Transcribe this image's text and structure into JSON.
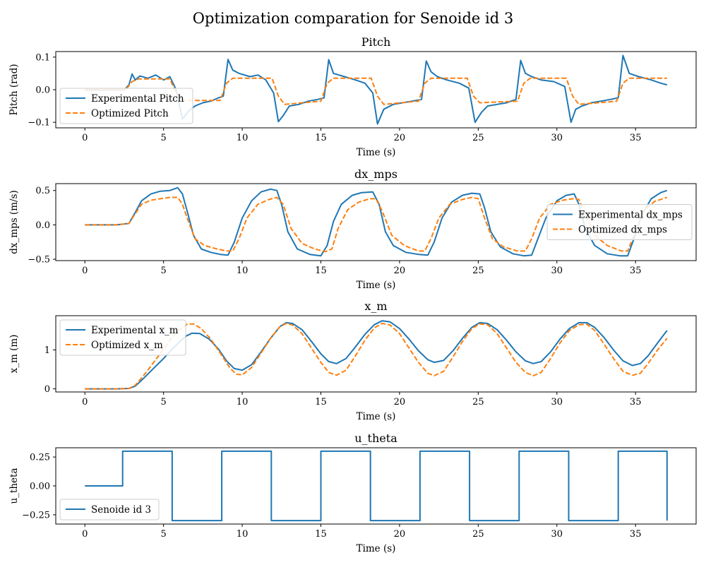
{
  "figure": {
    "suptitle": "Optimization comparation for Senoide id 3"
  },
  "colors": {
    "blue": "#1f77b4",
    "orange": "#ff7f0e"
  },
  "chart_data": [
    {
      "type": "line",
      "title": "Pitch",
      "xlabel": "Time (s)",
      "ylabel": "Pitch (rad)",
      "xlim": [
        -1.85,
        38.85
      ],
      "ylim": [
        -0.117,
        0.117
      ],
      "xticks": [
        0,
        5,
        10,
        15,
        20,
        25,
        30,
        35
      ],
      "yticks": [
        -0.1,
        0.0,
        0.1
      ],
      "ytick_labels": [
        "−0.1",
        "0.0",
        "0.1"
      ],
      "legend": "lower-left",
      "series": [
        {
          "name": "Experimental Pitch",
          "style": "solid",
          "color": "#1f77b4",
          "x": [
            0,
            2.5,
            2.8,
            3.0,
            3.2,
            3.5,
            4.0,
            4.5,
            5.0,
            5.4,
            5.8,
            6.2,
            6.6,
            7.0,
            7.5,
            8.0,
            8.5,
            8.8,
            9.1,
            9.4,
            9.8,
            10.5,
            11.0,
            11.5,
            12.0,
            12.3,
            12.6,
            13.0,
            13.6,
            14.2,
            14.8,
            15.2,
            15.5,
            15.8,
            16.5,
            17.2,
            17.8,
            18.3,
            18.6,
            19.0,
            19.6,
            20.2,
            20.8,
            21.4,
            21.7,
            22.0,
            22.4,
            23.0,
            23.8,
            24.4,
            24.8,
            25.2,
            25.6,
            26.2,
            26.8,
            27.4,
            27.7,
            28.0,
            28.4,
            29.0,
            29.8,
            30.5,
            30.9,
            31.2,
            31.6,
            32.2,
            32.8,
            33.4,
            33.9,
            34.2,
            34.6,
            35.2,
            36.0,
            36.6,
            37.0
          ],
          "y": [
            -0.001,
            -0.001,
            0.015,
            0.048,
            0.03,
            0.042,
            0.035,
            0.045,
            0.03,
            0.04,
            0.0,
            -0.09,
            -0.065,
            -0.05,
            -0.04,
            -0.035,
            -0.025,
            -0.02,
            0.093,
            0.06,
            0.05,
            0.04,
            0.045,
            0.03,
            -0.01,
            -0.098,
            -0.08,
            -0.05,
            -0.045,
            -0.035,
            -0.03,
            -0.025,
            0.092,
            0.05,
            0.04,
            0.03,
            0.02,
            -0.01,
            -0.105,
            -0.06,
            -0.045,
            -0.04,
            -0.035,
            -0.03,
            0.088,
            0.055,
            0.04,
            0.03,
            0.02,
            0.005,
            -0.1,
            -0.07,
            -0.05,
            -0.045,
            -0.04,
            -0.03,
            0.09,
            0.05,
            0.04,
            0.03,
            0.025,
            0.01,
            -0.1,
            -0.06,
            -0.05,
            -0.04,
            -0.035,
            -0.03,
            -0.025,
            0.105,
            0.05,
            0.04,
            0.03,
            0.02,
            0.015
          ]
        },
        {
          "name": "Optimized Pitch",
          "style": "dashed",
          "color": "#ff7f0e",
          "x": [
            0,
            2.6,
            3.0,
            3.4,
            5.4,
            5.8,
            6.2,
            8.6,
            9.0,
            9.4,
            11.9,
            12.3,
            12.7,
            15.0,
            15.4,
            15.8,
            18.2,
            18.6,
            19.0,
            21.2,
            21.6,
            22.0,
            24.3,
            24.7,
            25.1,
            27.5,
            27.9,
            28.3,
            30.6,
            31.0,
            31.4,
            33.8,
            34.2,
            34.6,
            37.0
          ],
          "y": [
            0.0,
            0.0,
            0.025,
            0.033,
            0.033,
            -0.01,
            -0.033,
            -0.033,
            0.02,
            0.035,
            0.035,
            -0.02,
            -0.045,
            -0.035,
            0.02,
            0.035,
            0.035,
            -0.02,
            -0.045,
            -0.035,
            0.02,
            0.035,
            0.035,
            -0.02,
            -0.04,
            -0.035,
            0.02,
            0.035,
            0.035,
            -0.02,
            -0.045,
            -0.035,
            0.02,
            0.035,
            0.035
          ]
        }
      ]
    },
    {
      "type": "line",
      "title": "dx_mps",
      "xlabel": "Time (s)",
      "ylabel": "dx_mps (m/s)",
      "xlim": [
        -1.85,
        38.85
      ],
      "ylim": [
        -0.52,
        0.6
      ],
      "xticks": [
        0,
        5,
        10,
        15,
        20,
        25,
        30,
        35
      ],
      "yticks": [
        -0.5,
        0.0,
        0.5
      ],
      "ytick_labels": [
        "−0.5",
        "0.0",
        "0.5"
      ],
      "legend": "center-right",
      "series": [
        {
          "name": "Experimental dx_mps",
          "style": "solid",
          "color": "#1f77b4",
          "x": [
            0,
            1.0,
            2.0,
            2.8,
            3.2,
            3.6,
            4.2,
            4.8,
            5.4,
            5.9,
            6.2,
            6.5,
            6.9,
            7.4,
            8.0,
            8.6,
            9.1,
            9.5,
            10.0,
            10.6,
            11.2,
            11.8,
            12.2,
            12.5,
            12.9,
            13.5,
            14.3,
            15.0,
            15.4,
            15.8,
            16.3,
            17.0,
            17.6,
            18.3,
            18.7,
            19.1,
            19.6,
            20.4,
            21.2,
            21.8,
            22.2,
            22.7,
            23.3,
            24.0,
            24.6,
            25.1,
            25.4,
            25.8,
            26.4,
            27.2,
            27.9,
            28.4,
            28.8,
            29.3,
            30.0,
            30.6,
            31.1,
            31.4,
            31.8,
            32.4,
            33.2,
            34.0,
            34.5,
            34.9,
            35.4,
            36.0,
            36.6,
            37.0
          ],
          "y": [
            0.0,
            0.0,
            0.0,
            0.02,
            0.18,
            0.35,
            0.45,
            0.49,
            0.5,
            0.54,
            0.45,
            0.2,
            -0.15,
            -0.35,
            -0.4,
            -0.43,
            -0.44,
            -0.25,
            0.1,
            0.35,
            0.48,
            0.52,
            0.5,
            0.3,
            -0.1,
            -0.35,
            -0.43,
            -0.45,
            -0.3,
            0.05,
            0.3,
            0.43,
            0.47,
            0.48,
            0.3,
            -0.1,
            -0.3,
            -0.4,
            -0.43,
            -0.44,
            -0.25,
            0.1,
            0.33,
            0.43,
            0.46,
            0.45,
            0.25,
            -0.1,
            -0.32,
            -0.42,
            -0.45,
            -0.44,
            -0.2,
            0.1,
            0.35,
            0.43,
            0.45,
            0.3,
            -0.05,
            -0.3,
            -0.42,
            -0.45,
            -0.45,
            -0.2,
            0.15,
            0.38,
            0.47,
            0.5
          ]
        },
        {
          "name": "Optimized dx_mps",
          "style": "dashed",
          "color": "#ff7f0e",
          "x": [
            0,
            1.0,
            2.0,
            2.8,
            3.2,
            3.6,
            4.2,
            4.8,
            5.4,
            5.9,
            6.2,
            6.5,
            7.0,
            7.6,
            8.4,
            9.0,
            9.4,
            9.8,
            10.3,
            11.0,
            11.7,
            12.2,
            12.6,
            13.1,
            13.8,
            14.6,
            15.3,
            15.7,
            16.1,
            16.7,
            17.4,
            18.1,
            18.5,
            18.9,
            19.5,
            20.3,
            21.2,
            21.6,
            22.0,
            22.5,
            23.2,
            24.0,
            24.6,
            25.0,
            25.4,
            25.9,
            26.6,
            27.5,
            28.0,
            28.4,
            28.9,
            29.6,
            30.4,
            31.0,
            31.4,
            31.8,
            32.4,
            33.2,
            34.1,
            34.5,
            34.9,
            35.5,
            36.2,
            37.0
          ],
          "y": [
            0.0,
            0.0,
            0.0,
            0.02,
            0.16,
            0.3,
            0.36,
            0.38,
            0.4,
            0.4,
            0.3,
            0.1,
            -0.2,
            -0.3,
            -0.35,
            -0.38,
            -0.38,
            -0.2,
            0.1,
            0.3,
            0.37,
            0.4,
            0.3,
            -0.05,
            -0.27,
            -0.35,
            -0.39,
            -0.35,
            -0.05,
            0.22,
            0.33,
            0.38,
            0.38,
            0.2,
            -0.15,
            -0.3,
            -0.38,
            -0.38,
            -0.2,
            0.1,
            0.3,
            0.37,
            0.4,
            0.38,
            0.1,
            -0.2,
            -0.32,
            -0.38,
            -0.38,
            -0.2,
            0.1,
            0.3,
            0.36,
            0.38,
            0.37,
            0.15,
            -0.15,
            -0.3,
            -0.38,
            -0.38,
            -0.15,
            0.2,
            0.34,
            0.4
          ]
        }
      ]
    },
    {
      "type": "line",
      "title": "x_m",
      "xlabel": "Time (s)",
      "ylabel": "x_m (m)",
      "xlim": [
        -1.85,
        38.85
      ],
      "ylim": [
        -0.08,
        1.88
      ],
      "xticks": [
        0,
        5,
        10,
        15,
        20,
        25,
        30,
        35
      ],
      "yticks": [
        0,
        1
      ],
      "ytick_labels": [
        "0",
        "1"
      ],
      "legend": "upper-left",
      "series": [
        {
          "name": "Experimental x_m",
          "style": "solid",
          "color": "#1f77b4",
          "x": [
            0,
            1.0,
            2.0,
            2.8,
            3.2,
            3.6,
            4.0,
            4.5,
            5.0,
            5.5,
            6.0,
            6.4,
            6.8,
            7.3,
            7.9,
            8.5,
            9.0,
            9.5,
            10.0,
            10.6,
            11.2,
            11.8,
            12.4,
            12.8,
            13.2,
            13.8,
            14.4,
            15.0,
            15.5,
            16.0,
            16.6,
            17.2,
            17.8,
            18.4,
            18.9,
            19.4,
            20.0,
            20.6,
            21.2,
            21.8,
            22.2,
            22.8,
            23.4,
            24.0,
            24.6,
            25.1,
            25.6,
            26.2,
            26.8,
            27.4,
            28.0,
            28.5,
            29.0,
            29.6,
            30.2,
            30.8,
            31.4,
            31.9,
            32.4,
            33.0,
            33.6,
            34.2,
            34.8,
            35.3,
            35.8,
            36.4,
            37.0
          ],
          "y": [
            0.0,
            0.0,
            0.0,
            0.01,
            0.07,
            0.22,
            0.38,
            0.58,
            0.78,
            1.0,
            1.2,
            1.35,
            1.43,
            1.42,
            1.28,
            1.02,
            0.72,
            0.52,
            0.48,
            0.62,
            0.95,
            1.3,
            1.6,
            1.7,
            1.68,
            1.52,
            1.22,
            0.9,
            0.7,
            0.65,
            0.78,
            1.08,
            1.4,
            1.65,
            1.75,
            1.72,
            1.55,
            1.28,
            0.98,
            0.75,
            0.68,
            0.73,
            0.98,
            1.3,
            1.58,
            1.7,
            1.68,
            1.52,
            1.25,
            0.95,
            0.72,
            0.65,
            0.7,
            0.95,
            1.28,
            1.55,
            1.7,
            1.7,
            1.58,
            1.32,
            1.0,
            0.72,
            0.6,
            0.65,
            0.85,
            1.18,
            1.5
          ]
        },
        {
          "name": "Optimized x_m",
          "style": "dashed",
          "color": "#ff7f0e",
          "x": [
            0,
            1.0,
            2.0,
            2.8,
            3.2,
            3.6,
            4.0,
            4.5,
            5.0,
            5.5,
            6.0,
            6.5,
            6.9,
            7.4,
            8.0,
            8.6,
            9.2,
            9.6,
            10.0,
            10.6,
            11.2,
            11.8,
            12.4,
            12.8,
            13.2,
            13.8,
            14.4,
            15.0,
            15.5,
            16.0,
            16.6,
            17.2,
            17.8,
            18.4,
            18.9,
            19.4,
            20.0,
            20.6,
            21.2,
            21.8,
            22.2,
            22.8,
            23.4,
            24.0,
            24.6,
            25.1,
            25.6,
            26.2,
            26.8,
            27.4,
            28.0,
            28.5,
            29.0,
            29.6,
            30.2,
            30.8,
            31.4,
            31.9,
            32.4,
            33.0,
            33.6,
            34.2,
            34.8,
            35.3,
            35.8,
            36.4,
            37.0
          ],
          "y": [
            0.0,
            0.0,
            0.0,
            0.01,
            0.09,
            0.28,
            0.48,
            0.75,
            1.02,
            1.3,
            1.52,
            1.66,
            1.67,
            1.55,
            1.28,
            0.92,
            0.55,
            0.38,
            0.36,
            0.55,
            0.92,
            1.3,
            1.6,
            1.68,
            1.64,
            1.42,
            1.05,
            0.68,
            0.42,
            0.35,
            0.48,
            0.85,
            1.25,
            1.57,
            1.68,
            1.64,
            1.42,
            1.05,
            0.68,
            0.4,
            0.34,
            0.45,
            0.82,
            1.22,
            1.55,
            1.67,
            1.65,
            1.42,
            1.05,
            0.68,
            0.42,
            0.34,
            0.42,
            0.78,
            1.18,
            1.5,
            1.65,
            1.66,
            1.5,
            1.15,
            0.78,
            0.45,
            0.35,
            0.4,
            0.65,
            1.0,
            1.3
          ]
        }
      ]
    },
    {
      "type": "line",
      "title": "u_theta",
      "xlabel": "Time (s)",
      "ylabel": "u_theta",
      "xlim": [
        -1.85,
        38.85
      ],
      "ylim": [
        -0.33,
        0.33
      ],
      "xticks": [
        0,
        5,
        10,
        15,
        20,
        25,
        30,
        35
      ],
      "yticks": [
        -0.25,
        0.0,
        0.25
      ],
      "ytick_labels": [
        "−0.25",
        "0.00",
        "0.25"
      ],
      "legend": "lower-left",
      "series": [
        {
          "name": "Senoide id 3",
          "style": "solid",
          "color": "#1f77b4",
          "x": [
            0,
            2.4,
            2.4,
            5.55,
            5.55,
            8.7,
            8.7,
            11.85,
            11.85,
            15.0,
            15.0,
            18.15,
            18.15,
            21.3,
            21.3,
            24.45,
            24.45,
            27.6,
            27.6,
            30.75,
            30.75,
            33.9,
            33.9,
            37.0,
            37.0
          ],
          "y": [
            0.0,
            0.0,
            0.3,
            0.3,
            -0.3,
            -0.3,
            0.3,
            0.3,
            -0.3,
            -0.3,
            0.3,
            0.3,
            -0.3,
            -0.3,
            0.3,
            0.3,
            -0.3,
            -0.3,
            0.3,
            0.3,
            -0.3,
            -0.3,
            0.3,
            0.3,
            -0.3
          ]
        }
      ]
    }
  ]
}
